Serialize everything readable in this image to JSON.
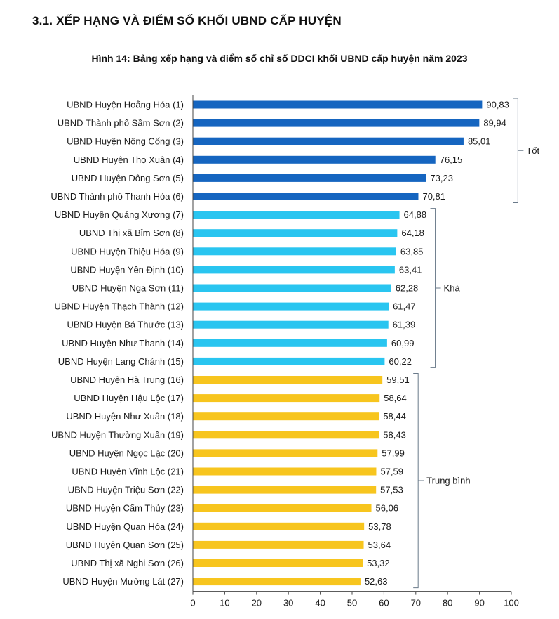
{
  "section_title": "3.1. XẾP HẠNG VÀ ĐIỂM SỐ KHỐI UBND CẤP HUYỆN",
  "colors": {
    "good": "#1565C0",
    "fair": "#29C5F0",
    "average": "#F7C51E",
    "axis": "#444444",
    "bracket": "#6a7a8a"
  },
  "chart_data": {
    "type": "bar",
    "orientation": "horizontal",
    "title": "Hình 14: Bảng xếp hạng và điểm số chỉ số DDCI khối UBND cấp huyện năm 2023",
    "xlabel": "",
    "ylabel": "",
    "xlim": [
      0,
      100
    ],
    "xticks": [
      0,
      10,
      20,
      30,
      40,
      50,
      60,
      70,
      80,
      90,
      100
    ],
    "grid": false,
    "categories": [
      "UBND Huyện Hoằng Hóa (1)",
      "UBND Thành phố Sầm Sơn (2)",
      "UBND Huyện Nông Cống (3)",
      "UBND Huyện Thọ Xuân (4)",
      "UBND Huyện Đông Sơn (5)",
      "UBND Thành phố Thanh Hóa (6)",
      "UBND Huyện Quảng Xương (7)",
      "UBND Thị xã Bỉm Sơn (8)",
      "UBND Huyện Thiệu Hóa (9)",
      "UBND Huyện Yên Định (10)",
      "UBND Huyện Nga Sơn (11)",
      "UBND Huyện Thạch Thành (12)",
      "UBND Huyện Bá Thước (13)",
      "UBND Huyện Như Thanh (14)",
      "UBND Huyện Lang Chánh (15)",
      "UBND Huyện Hà Trung (16)",
      "UBND Huyện Hậu Lộc (17)",
      "UBND Huyện Như Xuân (18)",
      "UBND Huyện Thường Xuân (19)",
      "UBND Huyện Ngọc Lặc (20)",
      "UBND Huyện Vĩnh Lộc (21)",
      "UBND Huyện Triệu Sơn (22)",
      "UBND Huyện Cẩm Thủy (23)",
      "UBND Huyện Quan Hóa (24)",
      "UBND Huyện Quan Sơn (25)",
      "UBND Thị xã Nghi Sơn (26)",
      "UBND Huyện Mường Lát (27)"
    ],
    "values": [
      90.83,
      89.94,
      85.01,
      76.15,
      73.23,
      70.81,
      64.88,
      64.18,
      63.85,
      63.41,
      62.28,
      61.47,
      61.39,
      60.99,
      60.22,
      59.51,
      58.64,
      58.44,
      58.43,
      57.99,
      57.59,
      57.53,
      56.06,
      53.78,
      53.64,
      53.32,
      52.63
    ],
    "value_labels": [
      "90,83",
      "89,94",
      "85,01",
      "76,15",
      "73,23",
      "70,81",
      "64,88",
      "64,18",
      "63,85",
      "63,41",
      "62,28",
      "61,47",
      "61,39",
      "60,99",
      "60,22",
      "59,51",
      "58,64",
      "58,44",
      "58,43",
      "57,99",
      "57,59",
      "57,53",
      "56,06",
      "53,78",
      "53,64",
      "53,32",
      "52,63"
    ],
    "groups": [
      {
        "label": "Tốt",
        "color_key": "good",
        "from": 0,
        "to": 5
      },
      {
        "label": "Khá",
        "color_key": "fair",
        "from": 6,
        "to": 14
      },
      {
        "label": "Trung bình",
        "color_key": "average",
        "from": 15,
        "to": 26
      }
    ]
  }
}
